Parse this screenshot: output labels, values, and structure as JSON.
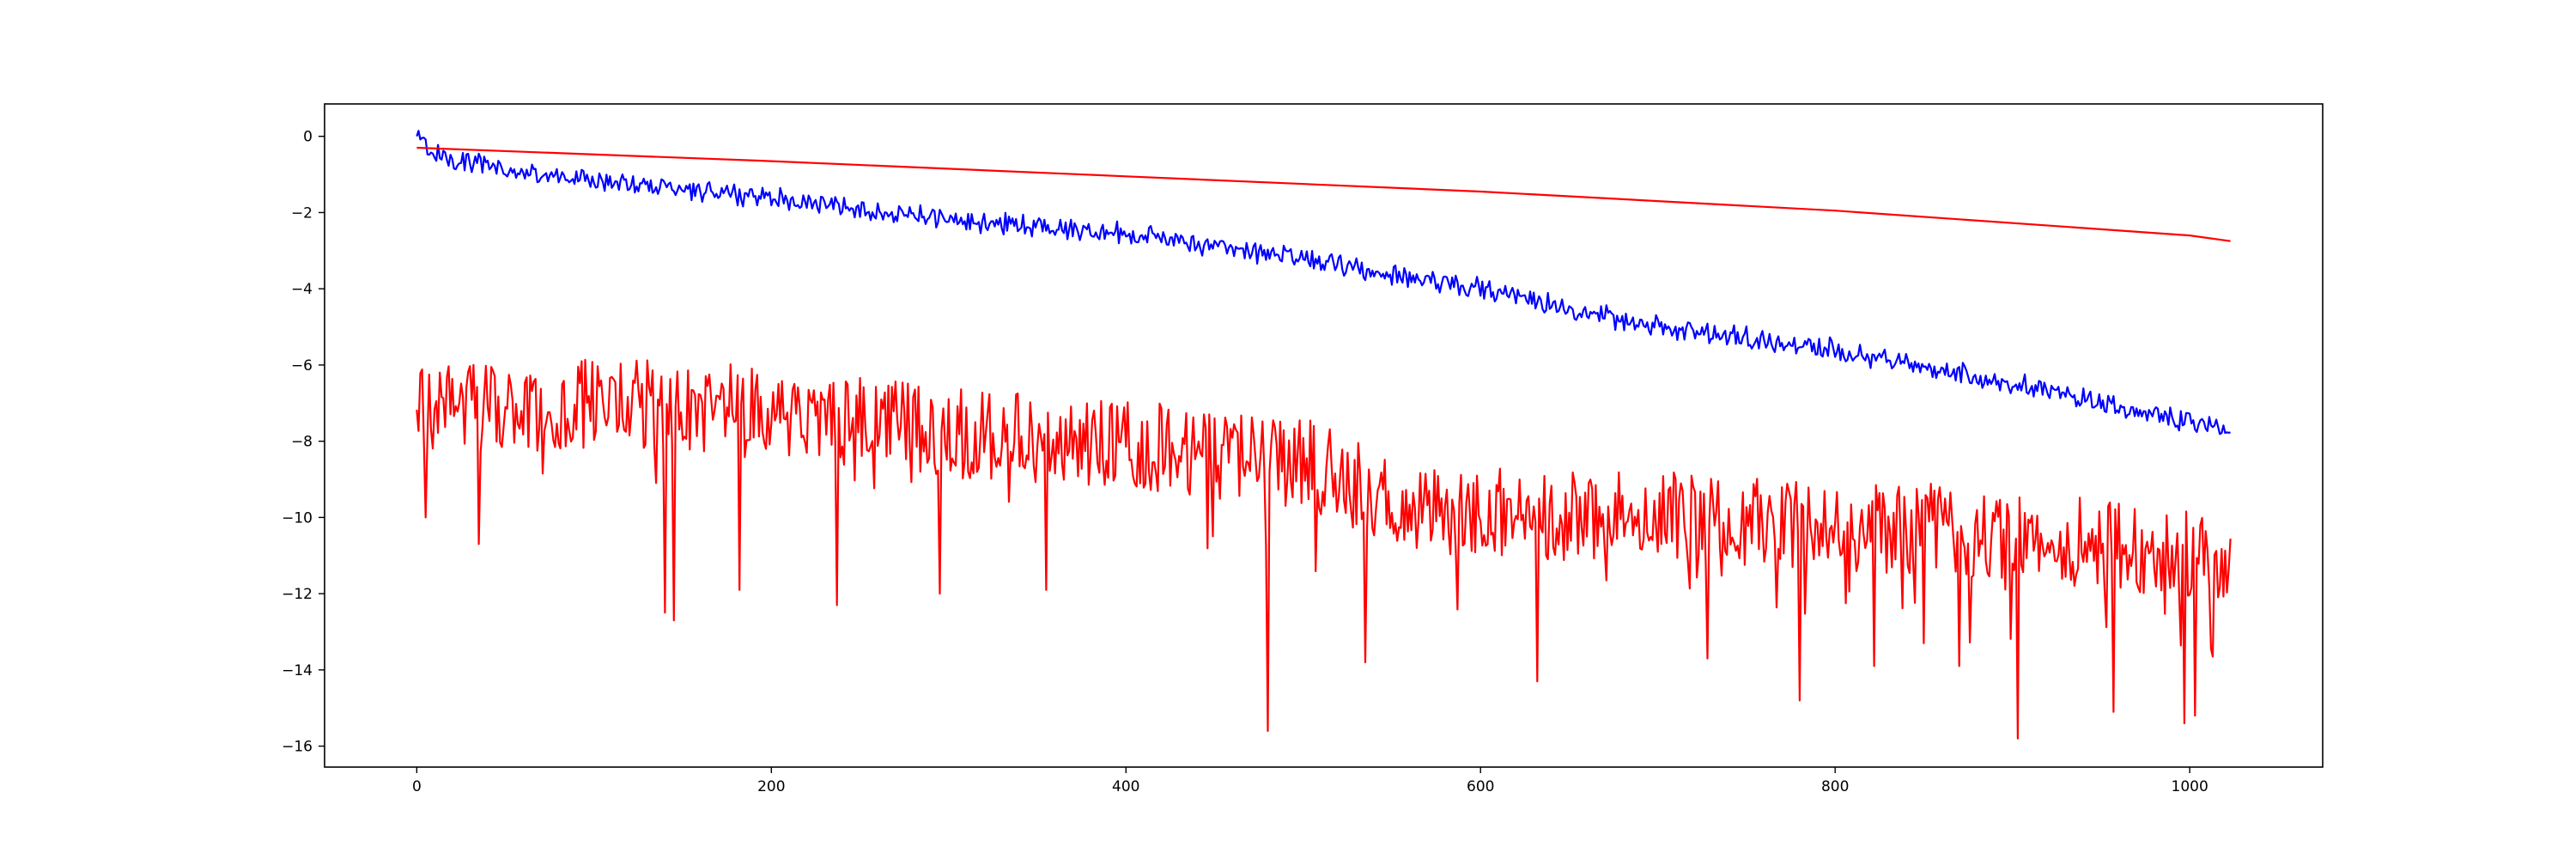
{
  "chart_data": {
    "type": "line",
    "title": "",
    "xlabel": "",
    "ylabel": "",
    "xlim": [
      -52,
      1075
    ],
    "ylim": [
      -16.55,
      0.85
    ],
    "grid": false,
    "legend": "none",
    "x_ticks": [
      0,
      200,
      400,
      600,
      800,
      1000
    ],
    "x_tick_labels": [
      "0",
      "200",
      "400",
      "600",
      "800",
      "1000"
    ],
    "y_ticks": [
      0,
      -2,
      -4,
      -6,
      -8,
      -10,
      -12,
      -14,
      -16
    ],
    "y_tick_labels": [
      "0",
      "−2",
      "−4",
      "−6",
      "−8",
      "−10",
      "−12",
      "−14",
      "−16"
    ],
    "x_range": [
      0,
      1023
    ],
    "series": [
      {
        "color": "#0000ff",
        "style": "noisy-decreasing",
        "anchors": [
          [
            0,
            0.0
          ],
          [
            10,
            -0.45
          ],
          [
            50,
            -0.9
          ],
          [
            100,
            -1.15
          ],
          [
            200,
            -1.6
          ],
          [
            300,
            -2.2
          ],
          [
            400,
            -2.55
          ],
          [
            500,
            -3.2
          ],
          [
            600,
            -4.0
          ],
          [
            700,
            -5.0
          ],
          [
            800,
            -5.6
          ],
          [
            900,
            -6.5
          ],
          [
            1000,
            -7.5
          ],
          [
            1023,
            -7.7
          ]
        ],
        "noise_amplitude": 0.22
      },
      {
        "color": "#ff0000",
        "style": "smooth",
        "points": [
          [
            0,
            -0.3
          ],
          [
            200,
            -0.65
          ],
          [
            400,
            -1.05
          ],
          [
            600,
            -1.45
          ],
          [
            800,
            -1.95
          ],
          [
            1000,
            -2.6
          ],
          [
            1023,
            -2.75
          ]
        ]
      },
      {
        "color": "#ff0000",
        "style": "noisy",
        "anchors": [
          [
            0,
            -7.2
          ],
          [
            100,
            -7.0
          ],
          [
            200,
            -7.2
          ],
          [
            300,
            -7.8
          ],
          [
            400,
            -8.0
          ],
          [
            480,
            -8.5
          ],
          [
            500,
            -8.5
          ],
          [
            560,
            -9.8
          ],
          [
            700,
            -10.0
          ],
          [
            800,
            -10.2
          ],
          [
            900,
            -10.4
          ],
          [
            1023,
            -11.2
          ]
        ],
        "noise_amplitude": 1.2,
        "dips": [
          [
            5,
            -10.0
          ],
          [
            35,
            -10.7
          ],
          [
            140,
            -12.5
          ],
          [
            145,
            -12.7
          ],
          [
            182,
            -11.9
          ],
          [
            237,
            -12.3
          ],
          [
            295,
            -12.0
          ],
          [
            355,
            -11.9
          ],
          [
            480,
            -15.6
          ],
          [
            535,
            -13.8
          ],
          [
            632,
            -14.3
          ],
          [
            728,
            -13.7
          ],
          [
            780,
            -14.8
          ],
          [
            822,
            -13.9
          ],
          [
            850,
            -13.3
          ],
          [
            870,
            -13.9
          ],
          [
            903,
            -15.8
          ],
          [
            957,
            -15.1
          ],
          [
            997,
            -15.4
          ],
          [
            1003,
            -15.2
          ]
        ]
      }
    ]
  }
}
